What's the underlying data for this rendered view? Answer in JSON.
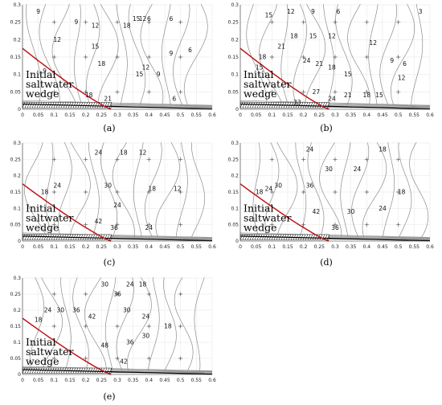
{
  "chart_data": [
    {
      "type": "contour",
      "panel_label": "(a)",
      "xlim": [
        0,
        0.6
      ],
      "ylim": [
        0,
        0.3
      ],
      "xticks": [
        "0",
        "0.05",
        "0.1",
        "0.15",
        "0.2",
        "0.25",
        "0.3",
        "0.35",
        "0.4",
        "0.45",
        "0.5",
        "0.55",
        "0.6"
      ],
      "yticks": [
        "0",
        "0.05",
        "0.1",
        "0.15",
        "0.2",
        "0.25",
        "0.3"
      ],
      "wedge_text": [
        "Initial",
        "saltwater",
        "wedge"
      ],
      "wedge_toe_x": 0.28,
      "wedge_height": 0.175,
      "contour_labels": [
        {
          "text": "9",
          "x": 0.05,
          "y": 0.28
        },
        {
          "text": "12",
          "x": 0.11,
          "y": 0.2
        },
        {
          "text": "9",
          "x": 0.17,
          "y": 0.25
        },
        {
          "text": "12",
          "x": 0.23,
          "y": 0.24
        },
        {
          "text": "15",
          "x": 0.23,
          "y": 0.18
        },
        {
          "text": "18",
          "x": 0.25,
          "y": 0.13
        },
        {
          "text": "9",
          "x": 0.07,
          "y": 0.11
        },
        {
          "text": "18",
          "x": 0.33,
          "y": 0.24
        },
        {
          "text": "15",
          "x": 0.36,
          "y": 0.26
        },
        {
          "text": "12",
          "x": 0.38,
          "y": 0.26
        },
        {
          "text": "6",
          "x": 0.4,
          "y": 0.26
        },
        {
          "text": "9",
          "x": 0.47,
          "y": 0.16
        },
        {
          "text": "6",
          "x": 0.47,
          "y": 0.26
        },
        {
          "text": "15",
          "x": 0.37,
          "y": 0.1
        },
        {
          "text": "12",
          "x": 0.39,
          "y": 0.12
        },
        {
          "text": "9",
          "x": 0.43,
          "y": 0.1
        },
        {
          "text": "6",
          "x": 0.48,
          "y": 0.03
        },
        {
          "text": "21",
          "x": 0.27,
          "y": 0.03
        },
        {
          "text": "18",
          "x": 0.21,
          "y": 0.04
        },
        {
          "text": "6",
          "x": 0.53,
          "y": 0.17
        }
      ]
    },
    {
      "type": "contour",
      "panel_label": "(b)",
      "xlim": [
        0,
        0.6
      ],
      "ylim": [
        0,
        0.3
      ],
      "xticks": [
        "0",
        "0.05",
        "0.1",
        "0.15",
        "0.2",
        "0.25",
        "0.3",
        "0.35",
        "0.4",
        "0.45",
        "0.5",
        "0.55",
        "0.6"
      ],
      "yticks": [
        "0",
        "0.05",
        "0.1",
        "0.15",
        "0.2",
        "0.25",
        "0.3"
      ],
      "wedge_text": [
        "Initial",
        "saltwater",
        "wedge"
      ],
      "wedge_toe_x": 0.28,
      "wedge_height": 0.175,
      "contour_labels": [
        {
          "text": "15",
          "x": 0.09,
          "y": 0.27
        },
        {
          "text": "12",
          "x": 0.16,
          "y": 0.28
        },
        {
          "text": "9",
          "x": 0.23,
          "y": 0.28
        },
        {
          "text": "6",
          "x": 0.31,
          "y": 0.28
        },
        {
          "text": "3",
          "x": 0.57,
          "y": 0.28
        },
        {
          "text": "18",
          "x": 0.17,
          "y": 0.21
        },
        {
          "text": "15",
          "x": 0.23,
          "y": 0.21
        },
        {
          "text": "12",
          "x": 0.29,
          "y": 0.21
        },
        {
          "text": "12",
          "x": 0.42,
          "y": 0.19
        },
        {
          "text": "21",
          "x": 0.13,
          "y": 0.18
        },
        {
          "text": "18",
          "x": 0.07,
          "y": 0.15
        },
        {
          "text": "15",
          "x": 0.06,
          "y": 0.12
        },
        {
          "text": "24",
          "x": 0.21,
          "y": 0.14
        },
        {
          "text": "21",
          "x": 0.25,
          "y": 0.13
        },
        {
          "text": "18",
          "x": 0.29,
          "y": 0.12
        },
        {
          "text": "15",
          "x": 0.34,
          "y": 0.1
        },
        {
          "text": "9",
          "x": 0.48,
          "y": 0.14
        },
        {
          "text": "6",
          "x": 0.52,
          "y": 0.13
        },
        {
          "text": "12",
          "x": 0.51,
          "y": 0.09
        },
        {
          "text": "27",
          "x": 0.24,
          "y": 0.05
        },
        {
          "text": "24",
          "x": 0.29,
          "y": 0.03
        },
        {
          "text": "21",
          "x": 0.34,
          "y": 0.04
        },
        {
          "text": "18",
          "x": 0.4,
          "y": 0.04
        },
        {
          "text": "15",
          "x": 0.44,
          "y": 0.04
        },
        {
          "text": "33",
          "x": 0.18,
          "y": 0.02
        }
      ]
    },
    {
      "type": "contour",
      "panel_label": "(c)",
      "xlim": [
        0,
        0.6
      ],
      "ylim": [
        0,
        0.3
      ],
      "xticks": [
        "0",
        "0.05",
        "0.1",
        "0.15",
        "0.2",
        "0.25",
        "0.3",
        "0.35",
        "0.4",
        "0.45",
        "0.5",
        "0.55",
        "0.6"
      ],
      "yticks": [
        "0",
        "0.05",
        "0.1",
        "0.15",
        "0.2",
        "0.25",
        "0.3"
      ],
      "wedge_text": [
        "Initial",
        "saltwater",
        "wedge"
      ],
      "wedge_toe_x": 0.28,
      "wedge_height": 0.175,
      "contour_labels": [
        {
          "text": "24",
          "x": 0.24,
          "y": 0.27
        },
        {
          "text": "18",
          "x": 0.32,
          "y": 0.27
        },
        {
          "text": "12",
          "x": 0.38,
          "y": 0.27
        },
        {
          "text": "24",
          "x": 0.11,
          "y": 0.17
        },
        {
          "text": "18",
          "x": 0.07,
          "y": 0.15
        },
        {
          "text": "30",
          "x": 0.27,
          "y": 0.17
        },
        {
          "text": "24",
          "x": 0.3,
          "y": 0.11
        },
        {
          "text": "18",
          "x": 0.41,
          "y": 0.16
        },
        {
          "text": "12",
          "x": 0.49,
          "y": 0.16
        },
        {
          "text": "42",
          "x": 0.24,
          "y": 0.06
        },
        {
          "text": "36",
          "x": 0.29,
          "y": 0.04
        },
        {
          "text": "24",
          "x": 0.4,
          "y": 0.04
        }
      ]
    },
    {
      "type": "contour",
      "panel_label": "(d)",
      "xlim": [
        0,
        0.6
      ],
      "ylim": [
        0,
        0.3
      ],
      "xticks": [
        "0",
        "0.05",
        "0.1",
        "0.15",
        "0.2",
        "0.25",
        "0.3",
        "0.35",
        "0.4",
        "0.45",
        "0.5",
        "0.55",
        "0.6"
      ],
      "yticks": [
        "0",
        "0.05",
        "0.1",
        "0.15",
        "0.2",
        "0.25",
        "0.3"
      ],
      "wedge_text": [
        "Initial",
        "saltwater",
        "wedge"
      ],
      "wedge_toe_x": 0.28,
      "wedge_height": 0.175,
      "contour_labels": [
        {
          "text": "24",
          "x": 0.22,
          "y": 0.28
        },
        {
          "text": "18",
          "x": 0.45,
          "y": 0.28
        },
        {
          "text": "30",
          "x": 0.28,
          "y": 0.22
        },
        {
          "text": "24",
          "x": 0.37,
          "y": 0.22
        },
        {
          "text": "30",
          "x": 0.12,
          "y": 0.17
        },
        {
          "text": "24",
          "x": 0.09,
          "y": 0.16
        },
        {
          "text": "18",
          "x": 0.06,
          "y": 0.15
        },
        {
          "text": "36",
          "x": 0.22,
          "y": 0.17
        },
        {
          "text": "18",
          "x": 0.51,
          "y": 0.15
        },
        {
          "text": "42",
          "x": 0.24,
          "y": 0.09
        },
        {
          "text": "36",
          "x": 0.3,
          "y": 0.04
        },
        {
          "text": "30",
          "x": 0.35,
          "y": 0.09
        },
        {
          "text": "24",
          "x": 0.45,
          "y": 0.1
        }
      ]
    },
    {
      "type": "contour",
      "panel_label": "(e)",
      "xlim": [
        0,
        0.6
      ],
      "ylim": [
        0,
        0.3
      ],
      "xticks": [
        "0",
        "0.05",
        "0.1",
        "0.15",
        "0.2",
        "0.25",
        "0.3",
        "0.35",
        "0.4",
        "0.45",
        "0.5",
        "0.55",
        "0.6"
      ],
      "yticks": [
        "0",
        "0.05",
        "0.1",
        "0.15",
        "0.2",
        "0.25",
        "0.3"
      ],
      "wedge_text": [
        "Initial",
        "saltwater",
        "wedge"
      ],
      "wedge_toe_x": 0.28,
      "wedge_height": 0.175,
      "contour_labels": [
        {
          "text": "30",
          "x": 0.26,
          "y": 0.28
        },
        {
          "text": "24",
          "x": 0.34,
          "y": 0.28
        },
        {
          "text": "18",
          "x": 0.38,
          "y": 0.28
        },
        {
          "text": "36",
          "x": 0.3,
          "y": 0.25
        },
        {
          "text": "30",
          "x": 0.12,
          "y": 0.2
        },
        {
          "text": "24",
          "x": 0.08,
          "y": 0.2
        },
        {
          "text": "18",
          "x": 0.05,
          "y": 0.17
        },
        {
          "text": "36",
          "x": 0.17,
          "y": 0.2
        },
        {
          "text": "42",
          "x": 0.22,
          "y": 0.18
        },
        {
          "text": "30",
          "x": 0.33,
          "y": 0.2
        },
        {
          "text": "24",
          "x": 0.39,
          "y": 0.18
        },
        {
          "text": "18",
          "x": 0.46,
          "y": 0.15
        },
        {
          "text": "48",
          "x": 0.26,
          "y": 0.09
        },
        {
          "text": "36",
          "x": 0.34,
          "y": 0.1
        },
        {
          "text": "30",
          "x": 0.39,
          "y": 0.12
        },
        {
          "text": "42",
          "x": 0.32,
          "y": 0.04
        }
      ]
    }
  ]
}
